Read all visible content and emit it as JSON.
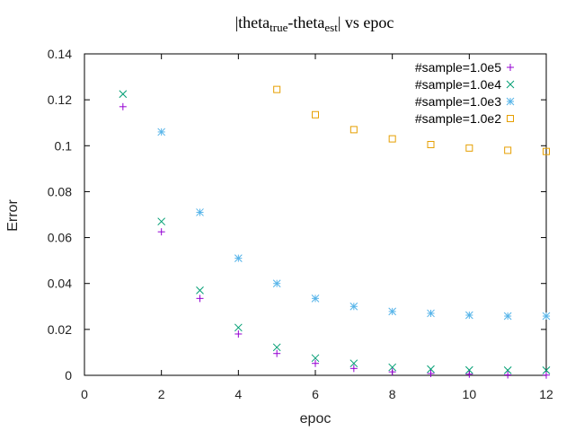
{
  "chart_data": {
    "type": "scatter",
    "title": {
      "parts": [
        {
          "text": "|theta",
          "sub": false
        },
        {
          "text": "true",
          "sub": true
        },
        {
          "text": "-theta",
          "sub": false
        },
        {
          "text": "est",
          "sub": true
        },
        {
          "text": "| vs epoc",
          "sub": false
        }
      ]
    },
    "xlabel": "epoc",
    "ylabel": "Error",
    "xlim": [
      0,
      12
    ],
    "ylim": [
      0,
      0.14
    ],
    "x_ticks": [
      "0",
      "2",
      "4",
      "6",
      "8",
      "10",
      "12"
    ],
    "y_ticks": [
      "0",
      "0.02",
      "0.04",
      "0.06",
      "0.08",
      "0.1",
      "0.12",
      "0.14"
    ],
    "grid": false,
    "legend_position": "top-right",
    "series": [
      {
        "name": "#sample=1.0e5",
        "marker": "plus",
        "color": "#9400d3",
        "x": [
          1,
          2,
          3,
          4,
          5,
          6,
          7,
          8,
          9,
          10,
          11,
          12
        ],
        "y": [
          0.117,
          0.0625,
          0.0335,
          0.018,
          0.0095,
          0.0052,
          0.003,
          0.0015,
          0.0008,
          0.0005,
          0.0002,
          0.0001
        ]
      },
      {
        "name": "#sample=1.0e4",
        "marker": "cross",
        "color": "#009e73",
        "x": [
          1,
          2,
          3,
          4,
          5,
          6,
          7,
          8,
          9,
          10,
          11,
          12
        ],
        "y": [
          0.1225,
          0.067,
          0.037,
          0.0208,
          0.0122,
          0.0075,
          0.0052,
          0.0035,
          0.0027,
          0.0023,
          0.0022,
          0.0022
        ]
      },
      {
        "name": "#sample=1.0e3",
        "marker": "star",
        "color": "#56b4e9",
        "x": [
          2,
          3,
          4,
          5,
          6,
          7,
          8,
          9,
          10,
          11,
          12
        ],
        "y": [
          0.106,
          0.071,
          0.051,
          0.04,
          0.0335,
          0.03,
          0.0278,
          0.027,
          0.0262,
          0.0258,
          0.0258
        ]
      },
      {
        "name": "#sample=1.0e2",
        "marker": "square",
        "color": "#e69f00",
        "x": [
          5,
          6,
          7,
          8,
          9,
          10,
          11,
          12
        ],
        "y": [
          0.1245,
          0.1135,
          0.107,
          0.103,
          0.1005,
          0.099,
          0.098,
          0.0975
        ]
      }
    ]
  }
}
